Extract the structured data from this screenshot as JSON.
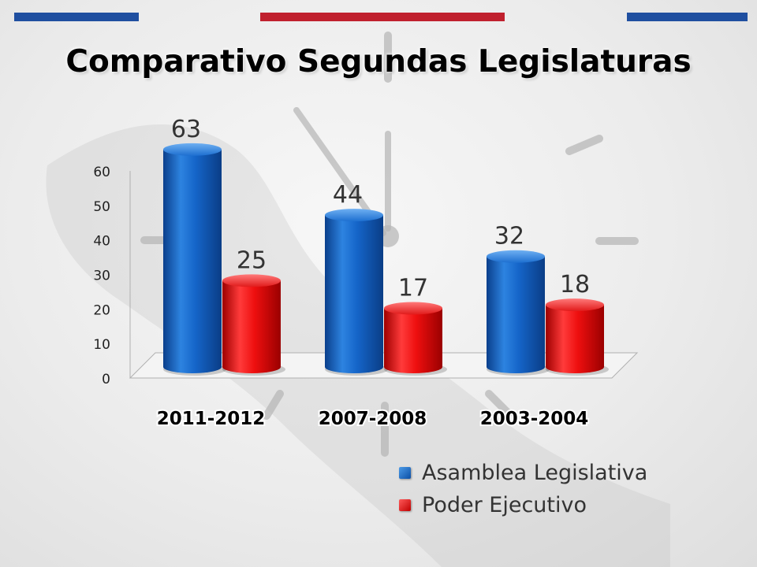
{
  "title": "Comparativo Segundas Legislaturas",
  "colors": {
    "stripe_blue": "#1f4fa0",
    "stripe_red": "#c0202e",
    "blue_series": "#0b5bbf",
    "red_series": "#e60000"
  },
  "chart_data": {
    "type": "bar",
    "title": "Comparativo Segundas Legislaturas",
    "categories": [
      "2011-2012",
      "2007-2008",
      "2003-2004"
    ],
    "series": [
      {
        "name": "Asamblea Legislativa",
        "values": [
          63,
          44,
          32
        ],
        "color": "#0b5bbf"
      },
      {
        "name": "Poder Ejecutivo",
        "values": [
          25,
          17,
          18
        ],
        "color": "#e60000"
      }
    ],
    "yticks": [
      "0",
      "10",
      "20",
      "30",
      "40",
      "50",
      "60"
    ],
    "ylim": [
      0,
      60
    ],
    "grid": false,
    "legend": "bottom-right",
    "style": "3d-cylinder"
  }
}
